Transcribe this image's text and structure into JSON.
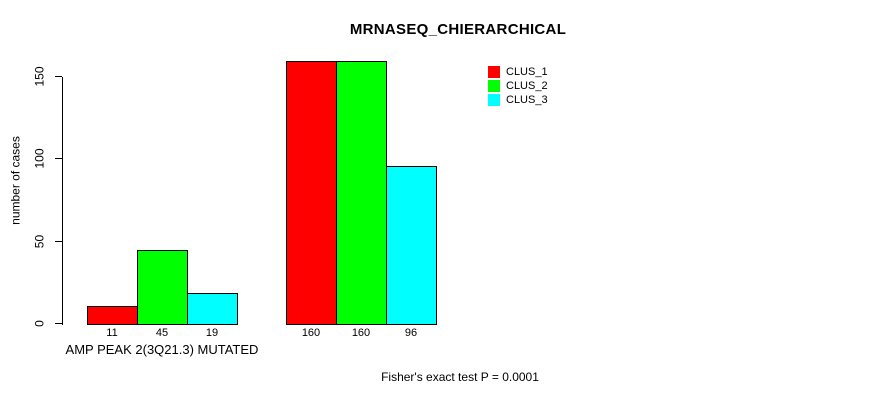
{
  "chart_data": {
    "type": "bar",
    "title": "MRNASEQ_CHIERARCHICAL",
    "ylabel": "number of cases",
    "ylim": [
      0,
      160
    ],
    "yticks": [
      0,
      50,
      100,
      150
    ],
    "grid": false,
    "legend_position": "top-right",
    "categories": [
      "AMP PEAK 2(3Q21.3) MUTATED",
      ""
    ],
    "series": [
      {
        "name": "CLUS_1",
        "color": "#ff0000",
        "values": [
          11,
          160
        ]
      },
      {
        "name": "CLUS_2",
        "color": "#00ff00",
        "values": [
          45,
          160
        ]
      },
      {
        "name": "CLUS_3",
        "color": "#00ffff",
        "values": [
          19,
          96
        ]
      }
    ],
    "bar_value_labels": [
      [
        "11",
        "45",
        "19"
      ],
      [
        "160",
        "160",
        "96"
      ]
    ],
    "annotation": "Fisher's exact test P = 0.0001"
  }
}
